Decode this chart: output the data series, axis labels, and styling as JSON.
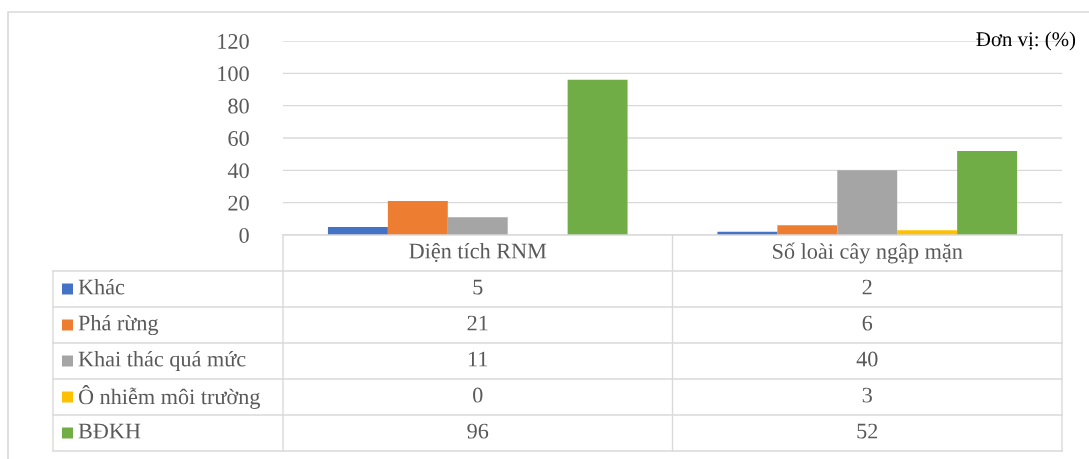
{
  "chart_data": {
    "type": "bar",
    "categories": [
      "Diện tích RNM",
      "Số loài cây ngập mặn"
    ],
    "series": [
      {
        "name": "Khác",
        "color": "#4472c4",
        "values": [
          5,
          2
        ]
      },
      {
        "name": "Phá rừng",
        "color": "#ed7d31",
        "values": [
          21,
          6
        ]
      },
      {
        "name": "Khai thác quá mức",
        "color": "#a5a5a5",
        "values": [
          11,
          40
        ]
      },
      {
        "name": "Ô nhiễm môi trường",
        "color": "#ffc000",
        "values": [
          0,
          3
        ]
      },
      {
        "name": "BĐKH",
        "color": "#70ad47",
        "values": [
          96,
          52
        ]
      }
    ],
    "ylim": [
      0,
      120
    ],
    "yticks": [
      0,
      20,
      40,
      60,
      80,
      100,
      120
    ],
    "grid": "y",
    "legend": "bottom",
    "data_labels": true,
    "annotations": [
      "Đơn vị: (%)"
    ]
  }
}
